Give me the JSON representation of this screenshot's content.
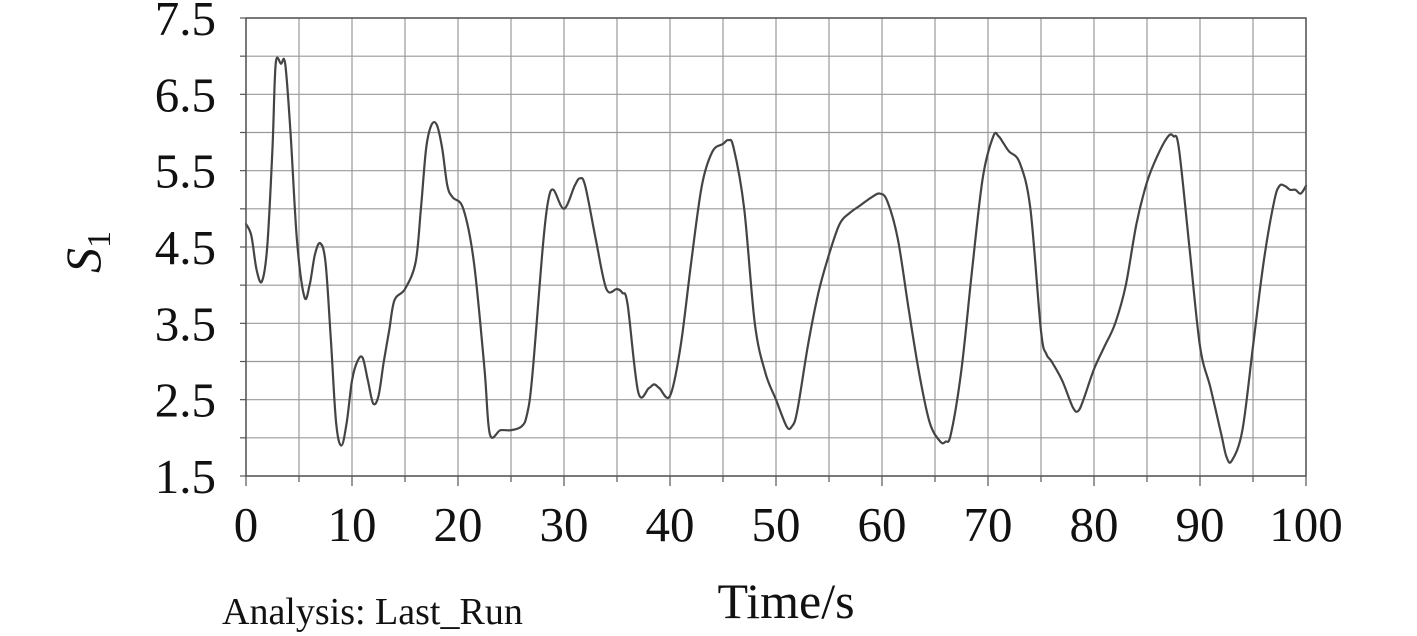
{
  "chart_data": {
    "type": "line",
    "title": "",
    "xlabel": "Time/s",
    "ylabel": "S",
    "ylabel_subscript": "1",
    "xlim": [
      0,
      100
    ],
    "ylim": [
      1.5,
      7.5
    ],
    "x_ticks": [
      0,
      10,
      20,
      30,
      40,
      50,
      60,
      70,
      80,
      90,
      100
    ],
    "y_ticks": [
      1.5,
      2.5,
      3.5,
      4.5,
      5.5,
      6.5,
      7.5
    ],
    "x_tick_labels": [
      "0",
      "10",
      "20",
      "30",
      "40",
      "50",
      "60",
      "70",
      "80",
      "90",
      "100"
    ],
    "y_tick_labels": [
      "1.5",
      "2.5",
      "3.5",
      "4.5",
      "5.5",
      "6.5",
      "7.5"
    ],
    "grid": true,
    "minor_grid": true,
    "line_color": "#444444",
    "grid_color": "#9a9a9a",
    "series": [
      {
        "x": [
          0,
          0.5,
          1.0,
          1.5,
          2.0,
          2.5,
          2.8,
          3.3,
          3.7,
          4.2,
          4.8,
          5.5,
          6.0,
          6.5,
          7.0,
          7.5,
          8.0,
          8.5,
          9.0,
          9.5,
          10.0,
          10.5,
          11.0,
          11.5,
          12.0,
          12.5,
          13.0,
          13.5,
          14.0,
          15.0,
          16.0,
          16.5,
          17.0,
          17.5,
          18.0,
          18.5,
          19.0,
          19.5,
          20.5,
          21.5,
          22.5,
          23.0,
          24.0,
          25.0,
          26.0,
          26.5,
          27.0,
          28.0,
          28.5,
          29.0,
          30.0,
          31.0,
          31.5,
          32.0,
          33.0,
          34.0,
          35.0,
          35.5,
          36.0,
          37.0,
          38.0,
          38.5,
          39.0,
          40.0,
          41.0,
          42.0,
          43.0,
          44.0,
          45.0,
          45.5,
          46.0,
          47.0,
          48.0,
          49.0,
          50.0,
          51.0,
          51.5,
          52.0,
          53.0,
          54.0,
          55.0,
          56.0,
          57.0,
          58.0,
          59.0,
          59.8,
          60.5,
          61.5,
          62.5,
          63.5,
          64.5,
          65.5,
          66.0,
          66.5,
          67.5,
          68.5,
          69.5,
          70.5,
          71.0,
          71.5,
          72.0,
          73.0,
          74.0,
          75.0,
          75.5,
          76.0,
          77.0,
          78.0,
          78.5,
          79.0,
          80.0,
          81.0,
          82.0,
          83.0,
          84.0,
          85.0,
          86.0,
          87.0,
          87.5,
          88.0,
          89.0,
          90.0,
          91.0,
          92.0,
          92.5,
          93.0,
          94.0,
          95.0,
          96.0,
          97.0,
          97.5,
          98.0,
          98.5,
          99.0,
          99.5,
          100.0
        ],
        "values": [
          4.8,
          4.65,
          4.2,
          4.05,
          4.5,
          5.8,
          6.9,
          6.9,
          6.9,
          6.0,
          4.6,
          3.85,
          4.0,
          4.4,
          4.55,
          4.3,
          3.3,
          2.2,
          1.9,
          2.2,
          2.75,
          3.0,
          3.05,
          2.75,
          2.45,
          2.55,
          3.0,
          3.4,
          3.8,
          3.95,
          4.3,
          5.0,
          5.8,
          6.1,
          6.1,
          5.8,
          5.3,
          5.15,
          5.0,
          4.3,
          2.9,
          2.05,
          2.1,
          2.1,
          2.15,
          2.3,
          2.8,
          4.5,
          5.1,
          5.25,
          5.0,
          5.3,
          5.4,
          5.3,
          4.6,
          3.95,
          3.95,
          3.9,
          3.75,
          2.6,
          2.65,
          2.7,
          2.65,
          2.55,
          3.2,
          4.3,
          5.3,
          5.75,
          5.85,
          5.9,
          5.8,
          5.0,
          3.5,
          2.85,
          2.5,
          2.15,
          2.15,
          2.35,
          3.2,
          3.9,
          4.4,
          4.8,
          4.95,
          5.05,
          5.15,
          5.2,
          5.1,
          4.6,
          3.7,
          2.85,
          2.2,
          1.95,
          1.95,
          2.05,
          2.9,
          4.2,
          5.4,
          5.95,
          5.95,
          5.85,
          5.75,
          5.6,
          5.0,
          3.4,
          3.1,
          3.0,
          2.75,
          2.4,
          2.35,
          2.5,
          2.9,
          3.2,
          3.5,
          4.0,
          4.8,
          5.35,
          5.7,
          5.95,
          5.95,
          5.8,
          4.5,
          3.2,
          2.65,
          2.05,
          1.75,
          1.7,
          2.1,
          3.2,
          4.3,
          5.1,
          5.3,
          5.3,
          5.25,
          5.25,
          5.2,
          5.3
        ]
      }
    ]
  },
  "footer": {
    "analysis_label": "Analysis: Last_Run"
  }
}
